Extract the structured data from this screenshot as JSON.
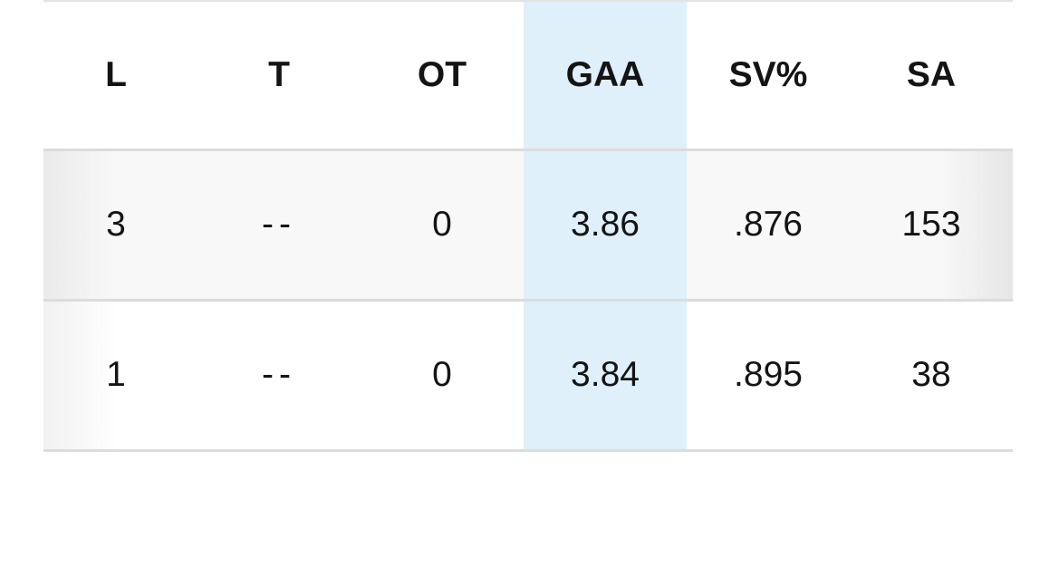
{
  "table": {
    "columns": [
      "L",
      "T",
      "OT",
      "GAA",
      "SV%",
      "SA"
    ],
    "rows": [
      [
        "3",
        "--",
        "0",
        "3.86",
        ".876",
        "153"
      ],
      [
        "1",
        "--",
        "0",
        "3.84",
        ".895",
        "38"
      ]
    ],
    "sorted_column": 3
  }
}
